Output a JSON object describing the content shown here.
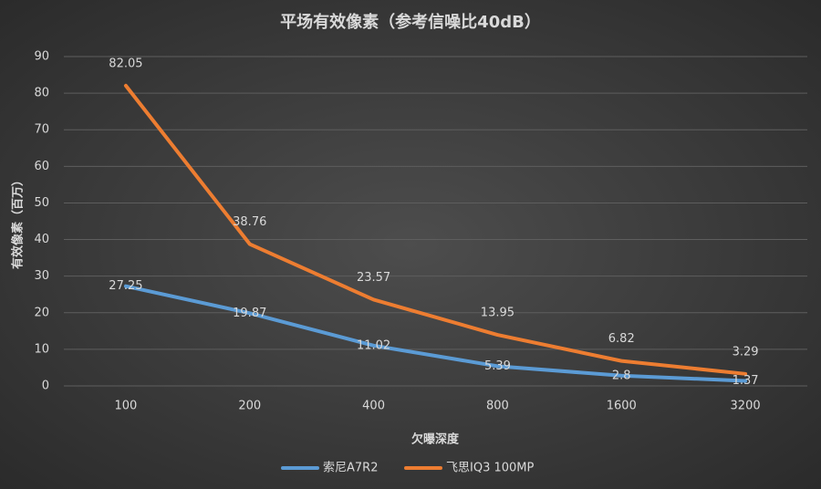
{
  "chart_data": {
    "type": "line",
    "title": "平场有效像素（参考信噪比40dB）",
    "x_label": "欠曝深度",
    "y_label": "有效像素（百万）",
    "categories": [
      "100",
      "200",
      "400",
      "800",
      "1600",
      "3200"
    ],
    "series": [
      {
        "name": "索尼A7R2",
        "color": "#5b9bd5",
        "values": [
          27.25,
          19.87,
          11.02,
          5.39,
          2.8,
          1.37
        ]
      },
      {
        "name": "飞思IQ3 100MP",
        "color": "#ed7d31",
        "values": [
          82.05,
          38.76,
          23.57,
          13.95,
          6.82,
          3.29
        ]
      }
    ],
    "ylim": [
      0,
      90
    ],
    "yticks": [
      0,
      10,
      20,
      30,
      40,
      50,
      60,
      70,
      80,
      90
    ],
    "grid": true,
    "legend": "bottom"
  }
}
